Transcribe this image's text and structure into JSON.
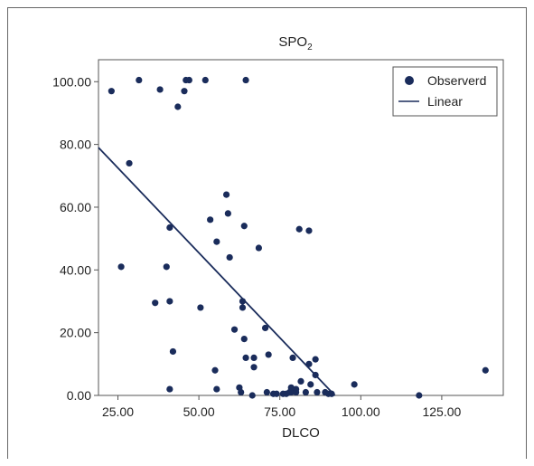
{
  "chart_data": {
    "type": "scatter",
    "title": "SPO",
    "title_subscript": "2",
    "xlabel": "DLCO",
    "ylabel": "",
    "xlim": [
      19,
      144
    ],
    "ylim": [
      0,
      107
    ],
    "x_ticks": [
      25,
      50,
      75,
      100,
      125
    ],
    "x_tick_labels": [
      "25.00",
      "50.00",
      "75.00",
      "100.00",
      "125.00"
    ],
    "y_ticks": [
      0,
      20,
      40,
      60,
      80,
      100
    ],
    "y_tick_labels": [
      "0.00",
      "20.00",
      "40.00",
      "60.00",
      "80.00",
      "100.00"
    ],
    "grid": false,
    "legend_position": "top-right",
    "series": [
      {
        "name": "Observerd",
        "kind": "points",
        "color": "#1a2c5b",
        "points": [
          [
            23,
            97
          ],
          [
            31.5,
            100.5
          ],
          [
            38,
            97.5
          ],
          [
            43.5,
            92
          ],
          [
            45.5,
            97
          ],
          [
            46,
            100.5
          ],
          [
            47,
            100.5
          ],
          [
            52,
            100.5
          ],
          [
            64.5,
            100.5
          ],
          [
            28.5,
            74
          ],
          [
            26,
            41
          ],
          [
            36.5,
            29.5
          ],
          [
            40,
            41
          ],
          [
            41,
            53.5
          ],
          [
            41,
            30
          ],
          [
            42,
            14
          ],
          [
            41,
            2
          ],
          [
            50.5,
            28
          ],
          [
            53.5,
            56
          ],
          [
            55.5,
            49
          ],
          [
            58.5,
            64
          ],
          [
            59,
            58
          ],
          [
            59.5,
            44
          ],
          [
            55,
            8
          ],
          [
            55.5,
            2
          ],
          [
            61,
            21
          ],
          [
            62.5,
            2.5
          ],
          [
            63,
            1
          ],
          [
            63.5,
            28
          ],
          [
            63.5,
            30
          ],
          [
            64,
            54
          ],
          [
            64,
            18
          ],
          [
            64.5,
            12
          ],
          [
            66.5,
            0
          ],
          [
            67,
            12
          ],
          [
            67,
            9
          ],
          [
            68.5,
            47
          ],
          [
            70.5,
            21.5
          ],
          [
            71.5,
            13
          ],
          [
            71,
            1
          ],
          [
            73,
            0.5
          ],
          [
            74,
            0.5
          ],
          [
            76,
            0.5
          ],
          [
            77,
            0.5
          ],
          [
            78,
            1
          ],
          [
            78.5,
            2.5
          ],
          [
            78.5,
            1
          ],
          [
            79,
            12
          ],
          [
            80,
            2
          ],
          [
            80,
            1
          ],
          [
            81,
            53
          ],
          [
            81.5,
            4.5
          ],
          [
            83,
            1
          ],
          [
            84,
            52.5
          ],
          [
            84,
            10
          ],
          [
            84.5,
            3.5
          ],
          [
            86,
            11.5
          ],
          [
            86,
            6.5
          ],
          [
            86.5,
            1
          ],
          [
            89,
            1
          ],
          [
            90,
            0.5
          ],
          [
            91,
            0.5
          ],
          [
            98,
            3.5
          ],
          [
            118,
            0
          ],
          [
            138.5,
            8
          ]
        ]
      },
      {
        "name": "Linear",
        "kind": "line",
        "color": "#1a2c5b",
        "x": [
          19,
          92
        ],
        "y": [
          79,
          0
        ]
      }
    ]
  }
}
